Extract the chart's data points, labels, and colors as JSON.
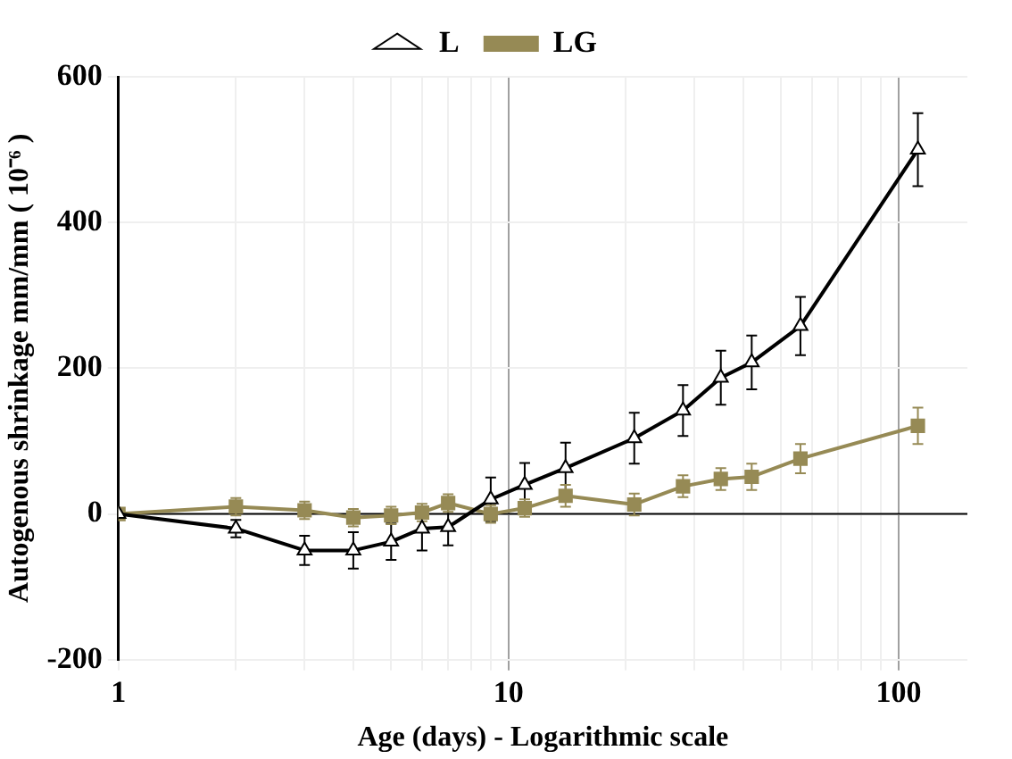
{
  "chart_data": {
    "type": "line",
    "xlabel": "Age (days) - Logarithmic scale",
    "ylabel": "Autogenous shrinkage mm/mm ( 10⁻⁶ )",
    "log": "x",
    "xlim": [
      1,
      150
    ],
    "xticks": [
      1,
      {
        "value": 2,
        "label": null
      },
      {
        "value": 3,
        "label": null
      },
      {
        "value": 4,
        "label": null
      },
      {
        "value": 5,
        "label": null
      },
      {
        "value": 6,
        "label": null
      },
      {
        "value": 7,
        "label": null
      },
      {
        "value": 8,
        "label": null
      },
      {
        "value": 9,
        "label": null
      },
      10,
      {
        "value": 20,
        "label": null
      },
      {
        "value": 30,
        "label": null
      },
      {
        "value": 40,
        "label": null
      },
      {
        "value": 50,
        "label": null
      },
      {
        "value": 60,
        "label": null
      },
      {
        "value": 70,
        "label": null
      },
      {
        "value": 80,
        "label": null
      },
      {
        "value": 90,
        "label": null
      },
      100
    ],
    "ylim": [
      -200,
      600
    ],
    "yticks": [
      -200,
      0,
      200,
      400,
      600
    ],
    "grid": true,
    "legend": "top",
    "ref_lines": [
      {
        "axis": "y",
        "value": 0,
        "color": "#000000"
      }
    ],
    "series": [
      {
        "name": "L",
        "color": "#000000",
        "marker": "triangle",
        "x": [
          1,
          2,
          3,
          4,
          5,
          6,
          7,
          9,
          11,
          14,
          21,
          28,
          35,
          42,
          56,
          112
        ],
        "values": [
          0,
          -20,
          -50,
          -50,
          -38,
          -20,
          -18,
          20,
          40,
          63,
          104,
          142,
          187,
          208,
          258,
          500
        ],
        "errors": [
          null,
          12,
          20,
          25,
          25,
          30,
          25,
          30,
          30,
          35,
          35,
          35,
          37,
          37,
          40,
          50
        ]
      },
      {
        "name": "LG",
        "color": "#968a55",
        "marker": "square",
        "x": [
          1,
          2,
          3,
          4,
          5,
          6,
          7,
          9,
          11,
          14,
          21,
          28,
          35,
          42,
          56,
          112
        ],
        "values": [
          0,
          10,
          5,
          -5,
          -2,
          2,
          15,
          0,
          8,
          25,
          13,
          38,
          48,
          51,
          76,
          121
        ],
        "errors": [
          null,
          12,
          12,
          12,
          12,
          12,
          12,
          12,
          12,
          15,
          15,
          15,
          15,
          18,
          20,
          25
        ]
      }
    ]
  }
}
